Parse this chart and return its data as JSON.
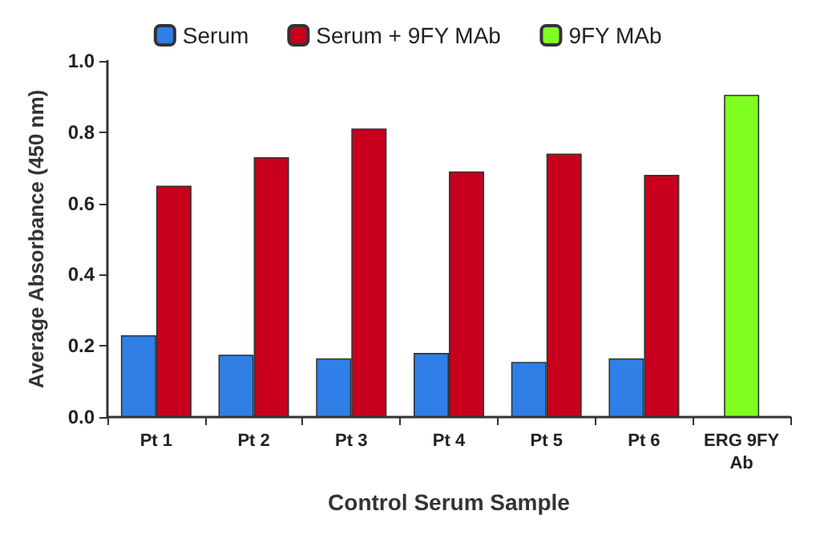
{
  "chart_data": {
    "type": "bar",
    "xlabel": "Control Serum Sample",
    "ylabel": "Average Absorbance (450 nm)",
    "categories": [
      "Pt 1",
      "Pt 2",
      "Pt 3",
      "Pt 4",
      "Pt 5",
      "Pt 6",
      "ERG 9FY\nAb"
    ],
    "series": [
      {
        "name": "Serum",
        "color": "#2f7fe6",
        "values": [
          0.23,
          0.175,
          0.165,
          0.18,
          0.155,
          0.165,
          null
        ]
      },
      {
        "name": "Serum + 9FY MAb",
        "color": "#c8001e",
        "values": [
          0.65,
          0.73,
          0.81,
          0.69,
          0.74,
          0.68,
          null
        ]
      },
      {
        "name": "9FY MAb",
        "color": "#7fff1f",
        "values": [
          null,
          null,
          null,
          null,
          null,
          null,
          0.905
        ]
      }
    ],
    "ylim": [
      0,
      1
    ],
    "yticks": [
      {
        "value": 0,
        "label": "0.0"
      },
      0.2,
      0.4,
      0.6,
      0.8,
      {
        "value": 1,
        "label": "1.0"
      }
    ],
    "grid": false,
    "legend": "top"
  }
}
